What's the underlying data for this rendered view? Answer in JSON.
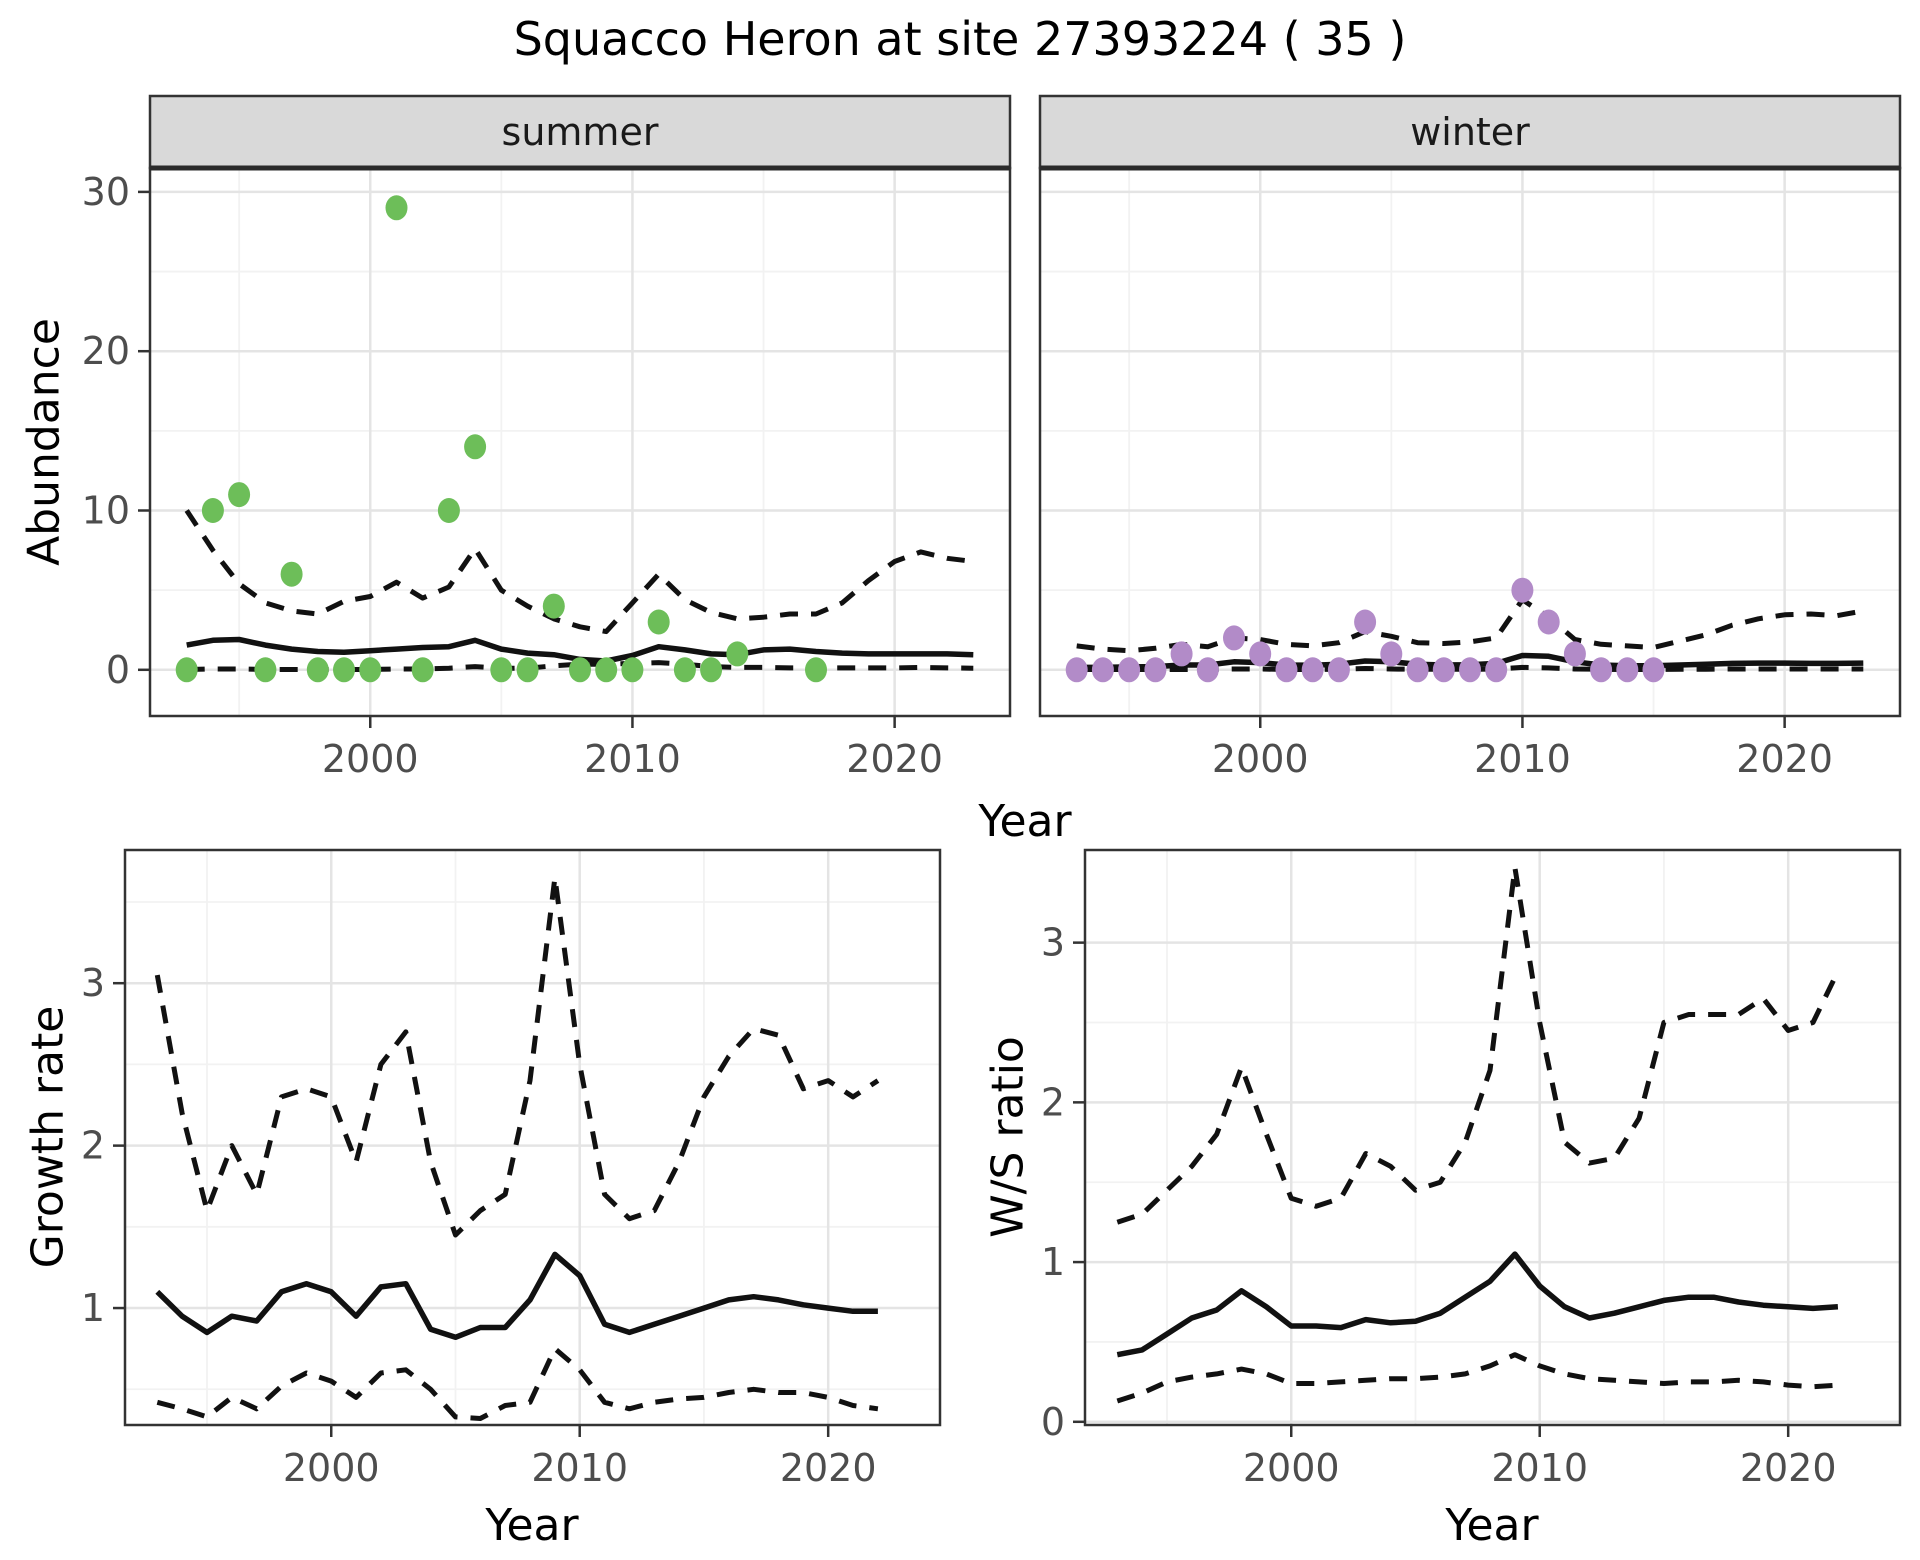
{
  "title": "Squacco Heron at site 27393224 ( 35 )",
  "colors": {
    "summer_dot": "#6DBE59",
    "winter_dot": "#B28BC8",
    "fit_line": "#000000",
    "ci_line": "#111111",
    "strip_bg": "#D9D9D9",
    "panel_border": "#333333",
    "grid_major": "#E4E4E4",
    "grid_minor": "#F2F2F2",
    "tick_label": "#4D4D4D",
    "strip_text": "#1A1A1A"
  },
  "labels": {
    "top_xlabel": "Year",
    "bottom_left_xlabel": "Year",
    "bottom_right_xlabel": "Year",
    "abundance_ylabel": "Abundance",
    "growth_ylabel": "Growth rate",
    "ws_ylabel": "W/S ratio"
  },
  "chart_data": [
    {
      "type": "scatter",
      "facet": "summer",
      "ylabel": "Abundance",
      "xlabel": "Year",
      "xticks": [
        2000,
        2010,
        2020
      ],
      "xminor": [
        1995,
        2005,
        2015
      ],
      "yticks": [
        0,
        10,
        20,
        30
      ],
      "yminor": [
        5,
        15,
        25
      ],
      "xlim": [
        1991.6,
        2024.4
      ],
      "ylim": [
        -2.9,
        31.5
      ],
      "points": {
        "years": [
          1993,
          1994,
          1995,
          1996,
          1997,
          1998,
          1999,
          2000,
          2001,
          2002,
          2003,
          2004,
          2005,
          2006,
          2007,
          2008,
          2009,
          2010,
          2011,
          2012,
          2013,
          2014,
          2017
        ],
        "values": [
          0,
          10,
          11,
          0,
          6,
          0,
          0,
          0,
          29,
          0,
          10,
          14,
          0,
          0,
          4,
          0,
          0,
          0,
          3,
          0,
          0,
          1,
          0
        ]
      },
      "fit": {
        "years": [
          1993,
          1994,
          1995,
          1996,
          1997,
          1998,
          1999,
          2000,
          2001,
          2002,
          2003,
          2004,
          2005,
          2006,
          2007,
          2008,
          2009,
          2010,
          2011,
          2012,
          2013,
          2014,
          2015,
          2016,
          2017,
          2018,
          2019,
          2020,
          2021,
          2022,
          2023
        ],
        "values": [
          1.55,
          1.85,
          1.9,
          1.55,
          1.3,
          1.15,
          1.1,
          1.2,
          1.3,
          1.4,
          1.45,
          1.85,
          1.3,
          1.05,
          0.95,
          0.65,
          0.55,
          0.9,
          1.45,
          1.25,
          1.0,
          0.95,
          1.25,
          1.3,
          1.15,
          1.05,
          1.0,
          1.0,
          1.0,
          1.0,
          0.95
        ]
      },
      "upper": {
        "years": [
          1993,
          1994,
          1995,
          1996,
          1997,
          1998,
          1999,
          2000,
          2001,
          2002,
          2003,
          2004,
          2005,
          2006,
          2007,
          2008,
          2009,
          2010,
          2011,
          2012,
          2013,
          2014,
          2015,
          2016,
          2017,
          2018,
          2019,
          2020,
          2021,
          2022,
          2023
        ],
        "values": [
          10,
          7.5,
          5.4,
          4.2,
          3.7,
          3.5,
          4.3,
          4.6,
          5.5,
          4.5,
          5.2,
          7.6,
          5.0,
          4.0,
          3.2,
          2.7,
          2.4,
          4.2,
          6.0,
          4.4,
          3.6,
          3.2,
          3.3,
          3.5,
          3.5,
          4.2,
          5.6,
          6.8,
          7.4,
          7.0,
          6.8
        ]
      },
      "lower": {
        "years": [
          1993,
          1994,
          1995,
          1996,
          1997,
          1998,
          1999,
          2000,
          2001,
          2002,
          2003,
          2004,
          2005,
          2006,
          2007,
          2008,
          2009,
          2010,
          2011,
          2012,
          2013,
          2014,
          2015,
          2016,
          2017,
          2018,
          2019,
          2020,
          2021,
          2022,
          2023
        ],
        "values": [
          0.02,
          0.05,
          0.05,
          0.02,
          0.02,
          0.02,
          0.02,
          0.02,
          0.05,
          0.05,
          0.1,
          0.2,
          0.1,
          0.1,
          0.25,
          0.35,
          0.35,
          0.4,
          0.45,
          0.35,
          0.2,
          0.15,
          0.15,
          0.12,
          0.12,
          0.12,
          0.12,
          0.12,
          0.15,
          0.12,
          0.1
        ]
      }
    },
    {
      "type": "scatter",
      "facet": "winter",
      "ylabel": "Abundance",
      "xlabel": "Year",
      "xticks": [
        2000,
        2010,
        2020
      ],
      "xminor": [
        1995,
        2005,
        2015
      ],
      "yticks": [
        0,
        10,
        20,
        30
      ],
      "yminor": [
        5,
        15,
        25
      ],
      "xlim": [
        1991.6,
        2024.4
      ],
      "ylim": [
        -2.9,
        31.5
      ],
      "points": {
        "years": [
          1993,
          1994,
          1995,
          1996,
          1997,
          1998,
          1999,
          2000,
          2001,
          2002,
          2003,
          2004,
          2005,
          2006,
          2007,
          2008,
          2009,
          2010,
          2011,
          2012,
          2013,
          2014,
          2015
        ],
        "values": [
          0,
          0,
          0,
          0,
          1,
          0,
          2,
          1,
          0,
          0,
          0,
          3,
          1,
          0,
          0,
          0,
          0,
          5,
          3,
          1,
          0,
          0,
          0
        ]
      },
      "fit": {
        "years": [
          1993,
          1994,
          1995,
          1996,
          1997,
          1998,
          1999,
          2000,
          2001,
          2002,
          2003,
          2004,
          2005,
          2006,
          2007,
          2008,
          2009,
          2010,
          2011,
          2012,
          2013,
          2014,
          2015,
          2016,
          2017,
          2018,
          2019,
          2020,
          2021,
          2022,
          2023
        ],
        "values": [
          0.15,
          0.15,
          0.18,
          0.2,
          0.3,
          0.3,
          0.5,
          0.45,
          0.3,
          0.28,
          0.35,
          0.55,
          0.5,
          0.35,
          0.3,
          0.32,
          0.4,
          0.9,
          0.85,
          0.5,
          0.3,
          0.25,
          0.25,
          0.3,
          0.35,
          0.4,
          0.42,
          0.42,
          0.4,
          0.4,
          0.42
        ]
      },
      "upper": {
        "years": [
          1993,
          1994,
          1995,
          1996,
          1997,
          1998,
          1999,
          2000,
          2001,
          2002,
          2003,
          2004,
          2005,
          2006,
          2007,
          2008,
          2009,
          2010,
          2011,
          2012,
          2013,
          2014,
          2015,
          2016,
          2017,
          2018,
          2019,
          2020,
          2021,
          2022,
          2023
        ],
        "values": [
          1.5,
          1.3,
          1.2,
          1.35,
          1.6,
          1.45,
          2.0,
          1.9,
          1.6,
          1.5,
          1.7,
          2.4,
          2.1,
          1.7,
          1.65,
          1.75,
          2.0,
          4.4,
          3.3,
          1.9,
          1.6,
          1.5,
          1.4,
          1.8,
          2.2,
          2.8,
          3.2,
          3.45,
          3.5,
          3.4,
          3.7
        ]
      },
      "lower": {
        "years": [
          1993,
          1994,
          1995,
          1996,
          1997,
          1998,
          1999,
          2000,
          2001,
          2002,
          2003,
          2004,
          2005,
          2006,
          2007,
          2008,
          2009,
          2010,
          2011,
          2012,
          2013,
          2014,
          2015,
          2016,
          2017,
          2018,
          2019,
          2020,
          2021,
          2022,
          2023
        ],
        "values": [
          0.02,
          0.02,
          0.02,
          0.02,
          0.02,
          0.02,
          0.05,
          0.05,
          0.02,
          0.02,
          0.03,
          0.08,
          0.05,
          0.03,
          0.03,
          0.03,
          0.05,
          0.15,
          0.12,
          0.05,
          0.03,
          0.02,
          0.02,
          0.03,
          0.04,
          0.05,
          0.05,
          0.05,
          0.05,
          0.05,
          0.05
        ]
      }
    },
    {
      "type": "line",
      "facet": null,
      "ylabel": "Growth rate",
      "xlabel": "Year",
      "xticks": [
        2000,
        2010,
        2020
      ],
      "xminor": [
        1995,
        2005,
        2015
      ],
      "yticks": [
        1,
        2,
        3
      ],
      "yminor": [
        0.5,
        1.5,
        2.5,
        3.5
      ],
      "xlim": [
        1991.7,
        2024.5
      ],
      "ylim": [
        0.28,
        3.82
      ],
      "fit": {
        "years": [
          1993,
          1994,
          1995,
          1996,
          1997,
          1998,
          1999,
          2000,
          2001,
          2002,
          2003,
          2004,
          2005,
          2006,
          2007,
          2008,
          2009,
          2010,
          2011,
          2012,
          2013,
          2014,
          2015,
          2016,
          2017,
          2018,
          2019,
          2020,
          2021,
          2022
        ],
        "values": [
          1.1,
          0.95,
          0.85,
          0.95,
          0.92,
          1.1,
          1.15,
          1.1,
          0.95,
          1.13,
          1.15,
          0.87,
          0.82,
          0.88,
          0.88,
          1.05,
          1.33,
          1.2,
          0.9,
          0.85,
          0.9,
          0.95,
          1.0,
          1.05,
          1.07,
          1.05,
          1.02,
          1.0,
          0.98,
          0.98
        ]
      },
      "upper": {
        "years": [
          1993,
          1994,
          1995,
          1996,
          1997,
          1998,
          1999,
          2000,
          2001,
          2002,
          2003,
          2004,
          2005,
          2006,
          2007,
          2008,
          2009,
          2010,
          2011,
          2012,
          2013,
          2014,
          2015,
          2016,
          2017,
          2018,
          2019,
          2020,
          2021,
          2022
        ],
        "values": [
          3.05,
          2.2,
          1.6,
          2.0,
          1.7,
          2.3,
          2.35,
          2.3,
          1.9,
          2.5,
          2.7,
          1.9,
          1.45,
          1.6,
          1.7,
          2.4,
          3.65,
          2.5,
          1.7,
          1.55,
          1.6,
          1.9,
          2.3,
          2.55,
          2.72,
          2.68,
          2.35,
          2.4,
          2.3,
          2.4
        ]
      },
      "lower": {
        "years": [
          1993,
          1994,
          1995,
          1996,
          1997,
          1998,
          1999,
          2000,
          2001,
          2002,
          2003,
          2004,
          2005,
          2006,
          2007,
          2008,
          2009,
          2010,
          2011,
          2012,
          2013,
          2014,
          2015,
          2016,
          2017,
          2018,
          2019,
          2020,
          2021,
          2022
        ],
        "values": [
          0.42,
          0.38,
          0.33,
          0.45,
          0.38,
          0.52,
          0.6,
          0.55,
          0.45,
          0.6,
          0.62,
          0.5,
          0.33,
          0.32,
          0.4,
          0.42,
          0.75,
          0.62,
          0.42,
          0.38,
          0.42,
          0.44,
          0.45,
          0.48,
          0.5,
          0.48,
          0.48,
          0.45,
          0.4,
          0.38
        ]
      }
    },
    {
      "type": "line",
      "facet": null,
      "ylabel": "W/S ratio",
      "xlabel": "Year",
      "xticks": [
        2000,
        2010,
        2020
      ],
      "xminor": [
        1995,
        2005,
        2015
      ],
      "yticks": [
        0,
        1,
        2,
        3
      ],
      "yminor": [
        0.5,
        1.5,
        2.5
      ],
      "xlim": [
        1991.7,
        2024.5
      ],
      "ylim": [
        -0.02,
        3.58
      ],
      "fit": {
        "years": [
          1993,
          1994,
          1995,
          1996,
          1997,
          1998,
          1999,
          2000,
          2001,
          2002,
          2003,
          2004,
          2005,
          2006,
          2007,
          2008,
          2009,
          2010,
          2011,
          2012,
          2013,
          2014,
          2015,
          2016,
          2017,
          2018,
          2019,
          2020,
          2021,
          2022
        ],
        "values": [
          0.42,
          0.45,
          0.55,
          0.65,
          0.7,
          0.82,
          0.72,
          0.6,
          0.6,
          0.59,
          0.64,
          0.62,
          0.63,
          0.68,
          0.78,
          0.88,
          1.05,
          0.85,
          0.72,
          0.65,
          0.68,
          0.72,
          0.76,
          0.78,
          0.78,
          0.75,
          0.73,
          0.72,
          0.71,
          0.72
        ]
      },
      "upper": {
        "years": [
          1993,
          1994,
          1995,
          1996,
          1997,
          1998,
          1999,
          2000,
          2001,
          2002,
          2003,
          2004,
          2005,
          2006,
          2007,
          2008,
          2009,
          2010,
          2011,
          2012,
          2013,
          2014,
          2015,
          2016,
          2017,
          2018,
          2019,
          2020,
          2021,
          2022
        ],
        "values": [
          1.25,
          1.3,
          1.45,
          1.6,
          1.8,
          2.22,
          1.8,
          1.4,
          1.35,
          1.4,
          1.68,
          1.6,
          1.45,
          1.5,
          1.75,
          2.2,
          3.47,
          2.5,
          1.75,
          1.62,
          1.65,
          1.9,
          2.5,
          2.55,
          2.55,
          2.55,
          2.65,
          2.45,
          2.5,
          2.82
        ]
      },
      "lower": {
        "years": [
          1993,
          1994,
          1995,
          1996,
          1997,
          1998,
          1999,
          2000,
          2001,
          2002,
          2003,
          2004,
          2005,
          2006,
          2007,
          2008,
          2009,
          2010,
          2011,
          2012,
          2013,
          2014,
          2015,
          2016,
          2017,
          2018,
          2019,
          2020,
          2021,
          2022
        ],
        "values": [
          0.13,
          0.18,
          0.25,
          0.28,
          0.3,
          0.33,
          0.3,
          0.24,
          0.24,
          0.25,
          0.26,
          0.27,
          0.27,
          0.28,
          0.3,
          0.35,
          0.42,
          0.35,
          0.3,
          0.27,
          0.26,
          0.25,
          0.24,
          0.25,
          0.25,
          0.26,
          0.25,
          0.23,
          0.22,
          0.23
        ]
      }
    }
  ]
}
